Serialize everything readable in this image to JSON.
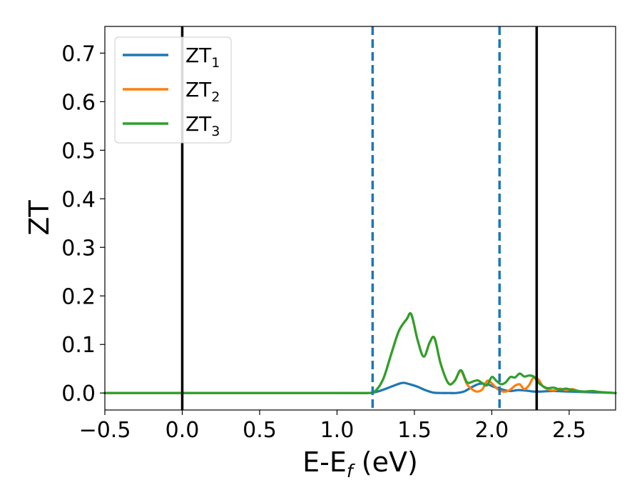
{
  "chart_data": {
    "type": "line",
    "xlabel": "E-E",
    "xlabel_sub": "f",
    "xlabel_unit": " (eV)",
    "ylabel": "ZT",
    "xlim": [
      -0.5,
      2.8
    ],
    "ylim": [
      -0.035,
      0.755
    ],
    "x_ticks": [
      -0.5,
      0.0,
      0.5,
      1.0,
      1.5,
      2.0,
      2.5
    ],
    "x_tick_labels": [
      "−0.5",
      "0.0",
      "0.5",
      "1.0",
      "1.5",
      "2.0",
      "2.5"
    ],
    "y_ticks": [
      0.0,
      0.1,
      0.2,
      0.3,
      0.4,
      0.5,
      0.6,
      0.7
    ],
    "y_tick_labels": [
      "0.0",
      "0.1",
      "0.2",
      "0.3",
      "0.4",
      "0.5",
      "0.6",
      "0.7"
    ],
    "grid": false,
    "legend_position": "top-left",
    "vlines": [
      {
        "x": 0.0,
        "style": "solid",
        "color": "#000000"
      },
      {
        "x": 2.29,
        "style": "solid",
        "color": "#000000"
      },
      {
        "x": 1.23,
        "style": "dashed",
        "color": "#1f77b4"
      },
      {
        "x": 2.05,
        "style": "dashed",
        "color": "#1f77b4"
      }
    ],
    "series": [
      {
        "name": "ZT",
        "name_sub": "1",
        "color": "#1f77b4",
        "x": [
          -0.5,
          1.0,
          1.2,
          1.25,
          1.3,
          1.35,
          1.4,
          1.43,
          1.47,
          1.52,
          1.57,
          1.62,
          1.67,
          1.72,
          1.77,
          1.82,
          1.87,
          1.92,
          1.97,
          2.02,
          2.07,
          2.12,
          2.17,
          2.22,
          2.27,
          2.32,
          2.37,
          2.42,
          2.5,
          2.6,
          2.7,
          2.8
        ],
        "y": [
          0.0,
          0.0,
          0.0,
          0.002,
          0.007,
          0.013,
          0.019,
          0.021,
          0.018,
          0.013,
          0.006,
          0.001,
          0.0,
          0.0,
          0.0,
          0.003,
          0.012,
          0.019,
          0.018,
          0.012,
          0.007,
          0.004,
          0.006,
          0.005,
          0.003,
          0.003,
          0.004,
          0.004,
          0.003,
          0.002,
          0.001,
          0.0
        ]
      },
      {
        "name": "ZT",
        "name_sub": "2",
        "color": "#ff7f0e",
        "x": [
          -0.5,
          1.0,
          1.2,
          1.25,
          1.3,
          1.35,
          1.4,
          1.45,
          1.48,
          1.52,
          1.56,
          1.6,
          1.63,
          1.67,
          1.72,
          1.76,
          1.8,
          1.84,
          1.88,
          1.91,
          1.94,
          1.97,
          2.0,
          2.03,
          2.06,
          2.09,
          2.12,
          2.15,
          2.18,
          2.21,
          2.24,
          2.27,
          2.3,
          2.33,
          2.36,
          2.4,
          2.44,
          2.48,
          2.52,
          2.56,
          2.6,
          2.65,
          2.7,
          2.8
        ],
        "y": [
          0.0,
          0.0,
          0.0,
          0.005,
          0.03,
          0.08,
          0.128,
          0.152,
          0.162,
          0.11,
          0.075,
          0.105,
          0.113,
          0.06,
          0.02,
          0.025,
          0.045,
          0.018,
          0.006,
          0.003,
          0.008,
          0.025,
          0.02,
          0.01,
          0.004,
          0.003,
          0.007,
          0.015,
          0.018,
          0.008,
          0.016,
          0.032,
          0.028,
          0.014,
          0.008,
          0.005,
          0.009,
          0.006,
          0.008,
          0.004,
          0.003,
          0.004,
          0.002,
          0.0
        ]
      },
      {
        "name": "ZT",
        "name_sub": "3",
        "color": "#2ca02c",
        "x": [
          -0.5,
          1.0,
          1.2,
          1.25,
          1.3,
          1.35,
          1.4,
          1.45,
          1.48,
          1.52,
          1.56,
          1.6,
          1.63,
          1.67,
          1.72,
          1.76,
          1.8,
          1.84,
          1.88,
          1.91,
          1.94,
          1.97,
          2.0,
          2.03,
          2.06,
          2.09,
          2.12,
          2.15,
          2.18,
          2.21,
          2.24,
          2.27,
          2.3,
          2.33,
          2.36,
          2.4,
          2.44,
          2.48,
          2.52,
          2.56,
          2.6,
          2.65,
          2.7,
          2.8
        ],
        "y": [
          0.0,
          0.0,
          0.0,
          0.005,
          0.03,
          0.08,
          0.128,
          0.152,
          0.162,
          0.11,
          0.075,
          0.105,
          0.113,
          0.06,
          0.02,
          0.025,
          0.047,
          0.022,
          0.024,
          0.026,
          0.02,
          0.016,
          0.033,
          0.025,
          0.018,
          0.022,
          0.033,
          0.032,
          0.04,
          0.034,
          0.036,
          0.034,
          0.022,
          0.014,
          0.01,
          0.011,
          0.007,
          0.009,
          0.006,
          0.004,
          0.003,
          0.004,
          0.002,
          0.0
        ]
      }
    ]
  }
}
